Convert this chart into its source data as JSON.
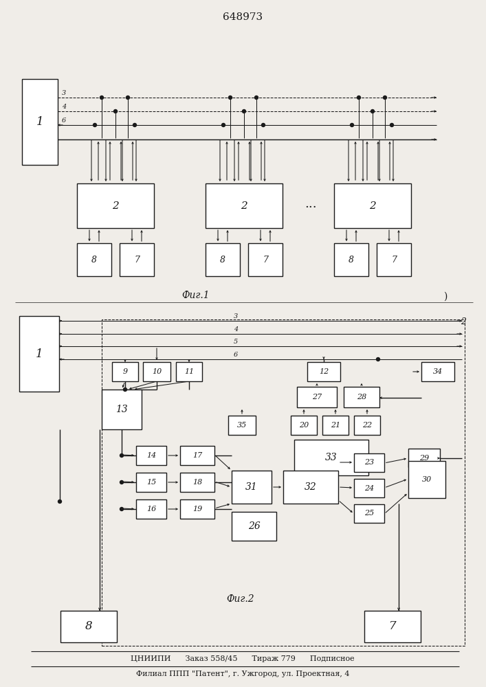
{
  "title": "648973",
  "fig1_label": "Фиг.1",
  "fig2_label": "Фиг.2",
  "footer_line1": "ЦНИИПИ      Заказ 558/45      Тираж 779      Подписное",
  "footer_line2": "Филиал ППП \"Патент\", г. Ужгород, ул. Проектная, 4",
  "bg_color": "#f0ede8",
  "line_color": "#1a1a1a"
}
